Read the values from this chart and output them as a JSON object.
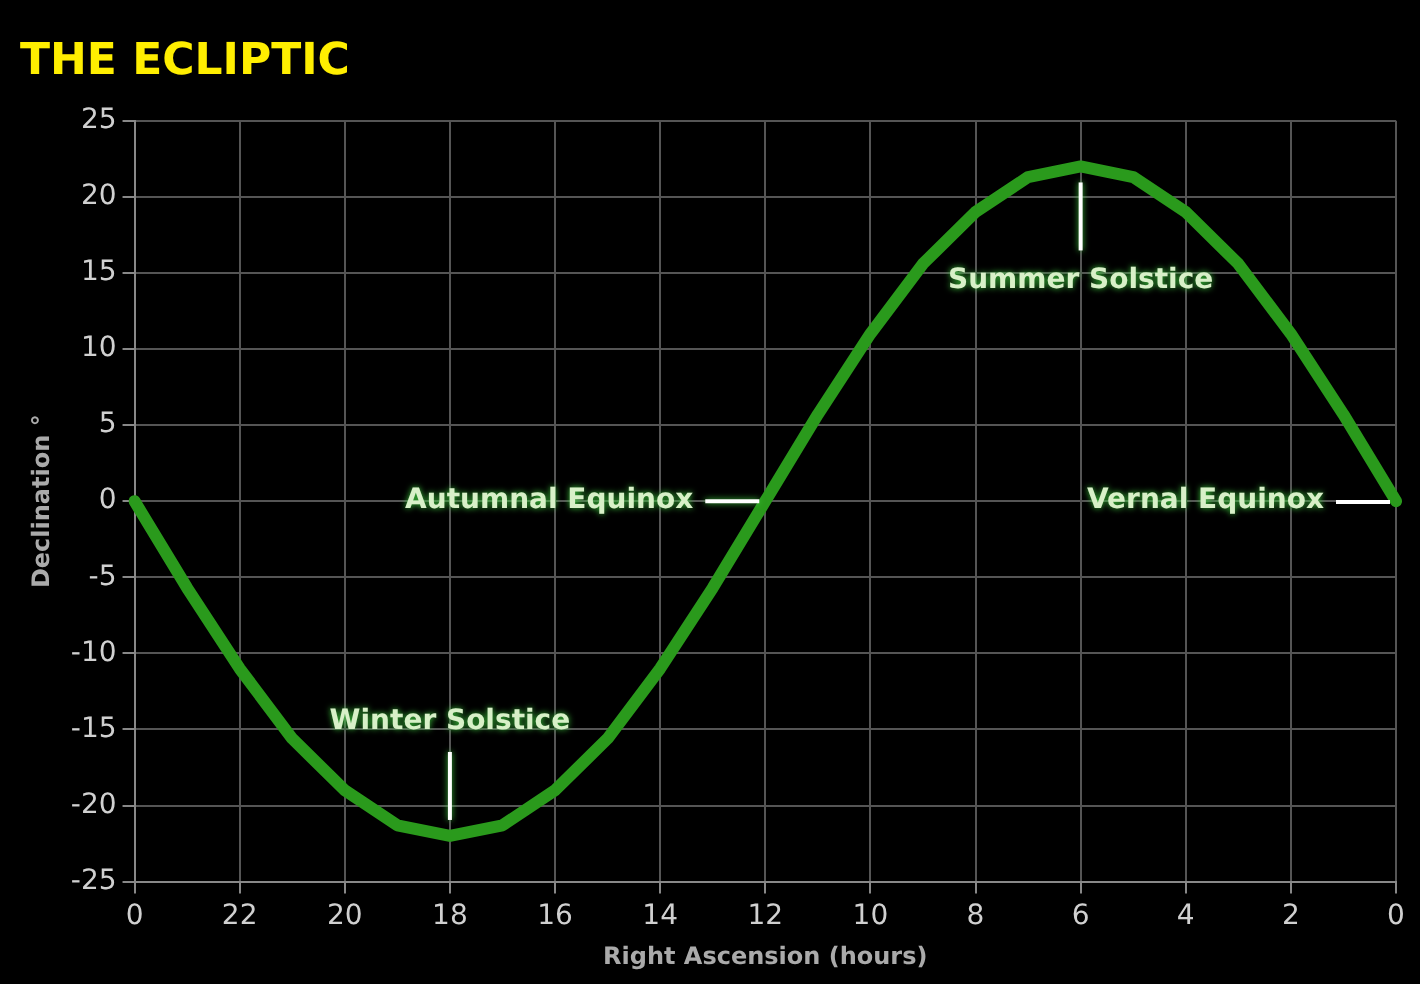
{
  "chart_data": {
    "type": "line",
    "title": "THE ECLIPTIC",
    "xlabel": "Right Ascension (hours)",
    "ylabel": "Declination °",
    "categories": [
      "0",
      null,
      "22",
      null,
      "20",
      null,
      "18",
      null,
      "16",
      null,
      "14",
      null,
      "12",
      null,
      "10",
      null,
      "8",
      null,
      "6",
      null,
      "4",
      null,
      "2",
      null,
      "0"
    ],
    "series": [
      {
        "color": "#2a9a1c",
        "values": [
          0,
          -5.7,
          -11,
          -15.6,
          -19,
          -21.3,
          -22,
          -21.3,
          -19,
          -15.6,
          -11,
          -5.7,
          0,
          5.7,
          11,
          15.6,
          19,
          21.3,
          22,
          21.3,
          19,
          15.6,
          11,
          5.7,
          0
        ]
      }
    ],
    "ylim": [
      -25,
      25
    ],
    "yticks": [
      -25,
      -20,
      -15,
      -10,
      -5,
      0,
      5,
      10,
      15,
      20,
      25
    ],
    "grid": true,
    "legend": false,
    "marker": "none",
    "line_style": "solid",
    "annotations": [
      {
        "text": "Winter Solstice",
        "x": "18",
        "y": -22
      },
      {
        "text": "Summer Solstice",
        "x": "6",
        "y": 22
      },
      {
        "text": "Autumnal Equinox",
        "x": "12",
        "y": 0
      },
      "Vernal Equinox"
    ]
  }
}
